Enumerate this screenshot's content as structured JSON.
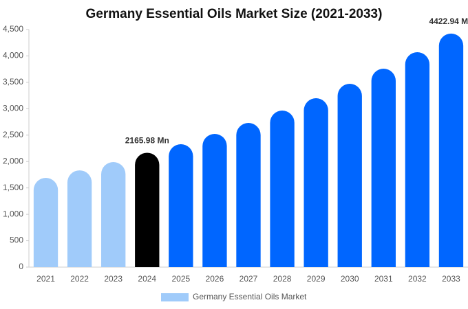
{
  "chart_data": {
    "type": "bar",
    "title": "Germany Essential Oils Market Size (2021-2033)",
    "categories": [
      "2021",
      "2022",
      "2023",
      "2024",
      "2025",
      "2026",
      "2027",
      "2028",
      "2029",
      "2030",
      "2031",
      "2032",
      "2033"
    ],
    "series": [
      {
        "name": "Germany Essential Oils Market",
        "color": "#a0cbfa",
        "colors": [
          "#a0cbfa",
          "#a0cbfa",
          "#a0cbfa",
          "#000000",
          "#0066ff",
          "#0066ff",
          "#0066ff",
          "#0066ff",
          "#0066ff",
          "#0066ff",
          "#0066ff",
          "#0066ff",
          "#0066ff"
        ],
        "values": [
          1690,
          1833,
          1990,
          2165.98,
          2328,
          2523,
          2731,
          2965,
          3199,
          3472,
          3758,
          4070,
          4422.94
        ],
        "value_labels": [
          null,
          null,
          null,
          "2165.98 Mn",
          null,
          null,
          null,
          null,
          null,
          null,
          null,
          null,
          "4422.94 Mn"
        ]
      }
    ],
    "ylim": [
      0,
      4500
    ],
    "yticks": [
      0,
      500,
      {
        "value": 1000,
        "label": "1,000"
      },
      {
        "value": 1500,
        "label": "1,500"
      },
      {
        "value": 2000,
        "label": "2,000"
      },
      {
        "value": 2500,
        "label": "2,500"
      },
      {
        "value": 3000,
        "label": "3,000"
      },
      {
        "value": 3500,
        "label": "3,500"
      },
      {
        "value": 4000,
        "label": "4,000"
      },
      {
        "value": 4500,
        "label": "4,500"
      }
    ],
    "legend": "bottom"
  }
}
